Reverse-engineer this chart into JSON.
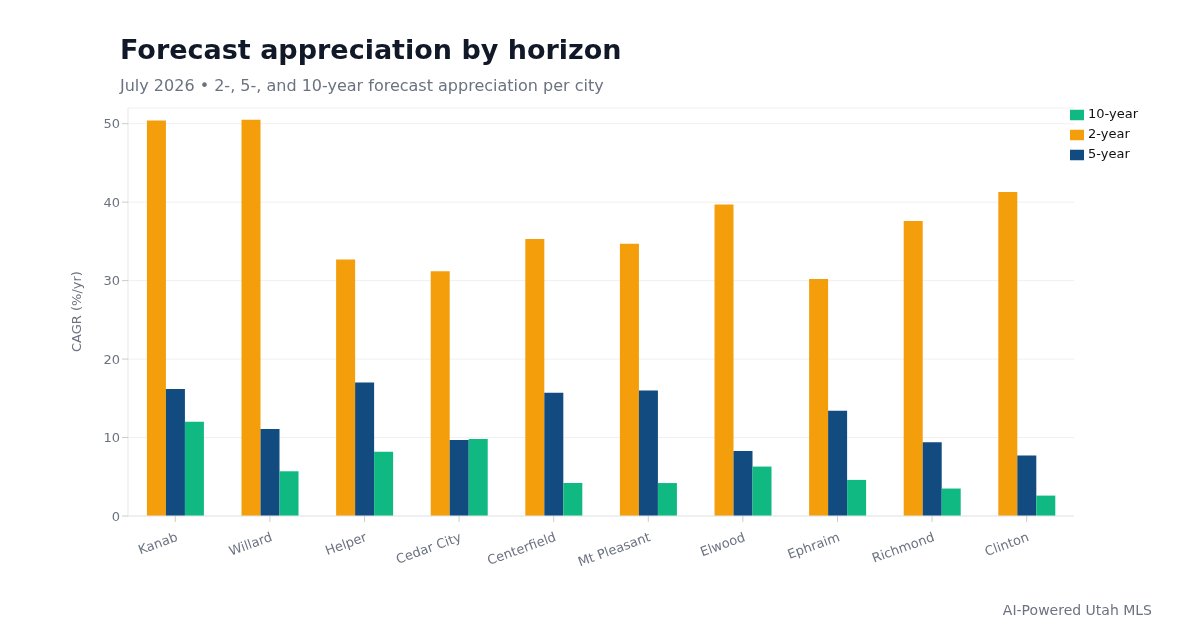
{
  "chart_data": {
    "type": "bar",
    "title": "Forecast appreciation by horizon",
    "subtitle": "July 2026 • 2-, 5-, and 10-year forecast appreciation per city",
    "ylabel": "CAGR (%/yr)",
    "annotations": [
      "AI-Powered Utah MLS"
    ],
    "categories": [
      "Kanab",
      "Willard",
      "Helper",
      "Cedar City",
      "Centerfield",
      "Mt Pleasant",
      "Elwood",
      "Ephraim",
      "Richmond",
      "Clinton"
    ],
    "series": [
      {
        "name": "2-year",
        "color": "#f59e0b",
        "values": [
          50.4,
          50.5,
          32.7,
          31.2,
          35.3,
          34.7,
          39.7,
          30.2,
          37.6,
          41.3
        ]
      },
      {
        "name": "5-year",
        "color": "#114b80",
        "values": [
          16.2,
          11.1,
          17.0,
          9.7,
          15.7,
          16.0,
          8.3,
          13.4,
          9.4,
          7.7
        ]
      },
      {
        "name": "10-year",
        "color": "#10b981",
        "values": [
          12.0,
          5.7,
          8.2,
          9.8,
          4.2,
          4.2,
          6.3,
          4.6,
          3.5,
          2.6
        ]
      }
    ],
    "ylim": [
      0,
      52
    ],
    "yticks": [
      0,
      10,
      20,
      30,
      40,
      50
    ],
    "grid": "y",
    "legend": "top right"
  }
}
